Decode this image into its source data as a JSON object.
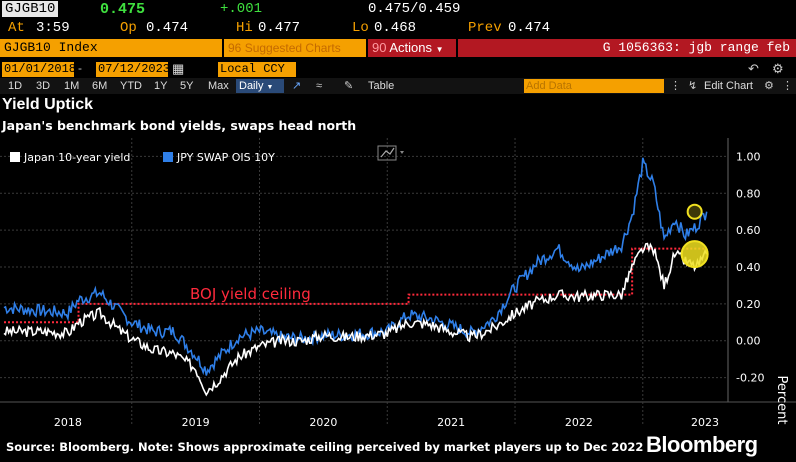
{
  "quote": {
    "ticker": "GJGB10",
    "last": "0.475",
    "change": "+.001",
    "bid_ask": "0.475/0.459",
    "at_label": "At",
    "at_time": "3:59",
    "open_label": "Op",
    "open": "0.474",
    "high_label": "Hi",
    "high": "0.477",
    "low_label": "Lo",
    "low": "0.468",
    "prev_label": "Prev",
    "prev": "0.474"
  },
  "function_bar": {
    "index": "GJGB10 Index",
    "suggested": "Suggested Charts",
    "suggested_num": "96",
    "actions_num": "90",
    "actions": "Actions",
    "chart_name": "G 1056363: jgb range feb"
  },
  "date_row": {
    "start": "01/01/2018",
    "end": "07/12/2023",
    "currency": "Local CCY"
  },
  "toolbar": {
    "periods": [
      "1D",
      "3D",
      "1M",
      "6M",
      "YTD",
      "1Y",
      "5Y",
      "Max"
    ],
    "frequency": "Daily",
    "table": "Table",
    "add_data": "Add Data",
    "edit_chart": "Edit Chart"
  },
  "colors": {
    "japan10y": "#ffffff",
    "ois10y": "#2f7fe8",
    "ceiling": "#ff2a3c",
    "marker": "#f0e020",
    "accent_orange": "#f5a000",
    "accent_red": "#b31822"
  },
  "chart_data": {
    "type": "line",
    "title": "Yield Uptick",
    "subtitle": "Japan's benchmark bond yields, swaps head north",
    "ylabel": "Percent",
    "ylim": [
      -0.3,
      1.1
    ],
    "y_ticks": [
      "-0.20",
      "0.00",
      "0.20",
      "0.40",
      "0.60",
      "0.80",
      "1.00"
    ],
    "x_ticks": [
      "2018",
      "2019",
      "2020",
      "2021",
      "2022",
      "2023"
    ],
    "grid": true,
    "legend_position": "top-left",
    "annotation": "BOJ yield ceiling",
    "series": [
      {
        "name": "Japan 10-year yield",
        "x": [
          "2018-01",
          "2018-03",
          "2018-05",
          "2018-07",
          "2018-08",
          "2018-10",
          "2018-12",
          "2019-01",
          "2019-03",
          "2019-05",
          "2019-07",
          "2019-08",
          "2019-09",
          "2019-11",
          "2020-01",
          "2020-03",
          "2020-05",
          "2020-07",
          "2020-09",
          "2020-11",
          "2021-01",
          "2021-03",
          "2021-05",
          "2021-07",
          "2021-09",
          "2021-11",
          "2022-01",
          "2022-03",
          "2022-05",
          "2022-07",
          "2022-09",
          "2022-11",
          "2022-12",
          "2023-01",
          "2023-02",
          "2023-03",
          "2023-04",
          "2023-05",
          "2023-06",
          "2023-07"
        ],
        "values": [
          0.05,
          0.05,
          0.05,
          0.04,
          0.1,
          0.15,
          0.05,
          0.01,
          -0.05,
          -0.07,
          -0.15,
          -0.27,
          -0.22,
          -0.09,
          -0.03,
          0.0,
          0.0,
          0.03,
          0.02,
          0.03,
          0.04,
          0.1,
          0.09,
          0.05,
          0.02,
          0.07,
          0.15,
          0.21,
          0.25,
          0.24,
          0.25,
          0.25,
          0.4,
          0.5,
          0.5,
          0.3,
          0.47,
          0.43,
          0.4,
          0.47
        ]
      },
      {
        "name": "JPY SWAP OIS 10Y",
        "x": [
          "2018-01",
          "2018-03",
          "2018-05",
          "2018-07",
          "2018-08",
          "2018-10",
          "2018-12",
          "2019-01",
          "2019-03",
          "2019-05",
          "2019-07",
          "2019-08",
          "2019-09",
          "2019-11",
          "2020-01",
          "2020-03",
          "2020-05",
          "2020-07",
          "2020-09",
          "2020-11",
          "2021-01",
          "2021-03",
          "2021-05",
          "2021-07",
          "2021-09",
          "2021-11",
          "2022-01",
          "2022-03",
          "2022-05",
          "2022-07",
          "2022-09",
          "2022-11",
          "2022-12",
          "2023-01",
          "2023-02",
          "2023-03",
          "2023-04",
          "2023-05",
          "2023-06",
          "2023-07"
        ],
        "values": [
          0.18,
          0.17,
          0.16,
          0.15,
          0.22,
          0.26,
          0.15,
          0.1,
          0.05,
          0.05,
          -0.08,
          -0.16,
          -0.1,
          0.02,
          0.05,
          0.02,
          0.01,
          0.03,
          0.03,
          0.04,
          0.05,
          0.14,
          0.12,
          0.08,
          0.04,
          0.12,
          0.29,
          0.42,
          0.5,
          0.38,
          0.45,
          0.52,
          0.68,
          0.96,
          0.85,
          0.55,
          0.66,
          0.57,
          0.62,
          0.7
        ]
      },
      {
        "name": "BOJ yield ceiling",
        "x": [
          "2018-01",
          "2018-08",
          "2021-03",
          "2022-12",
          "2023-07"
        ],
        "values": [
          0.1,
          0.2,
          0.25,
          0.5,
          0.5
        ]
      }
    ],
    "markers": [
      {
        "series": "JPY SWAP OIS 10Y",
        "x": "2023-07",
        "value": 0.7
      },
      {
        "series": "Japan 10-year yield",
        "x": "2023-07",
        "value": 0.47
      }
    ]
  },
  "source": "Source: Bloomberg. Note: Shows approximate ceiling perceived by market players up to Dec 2022",
  "brand": "Bloomberg"
}
